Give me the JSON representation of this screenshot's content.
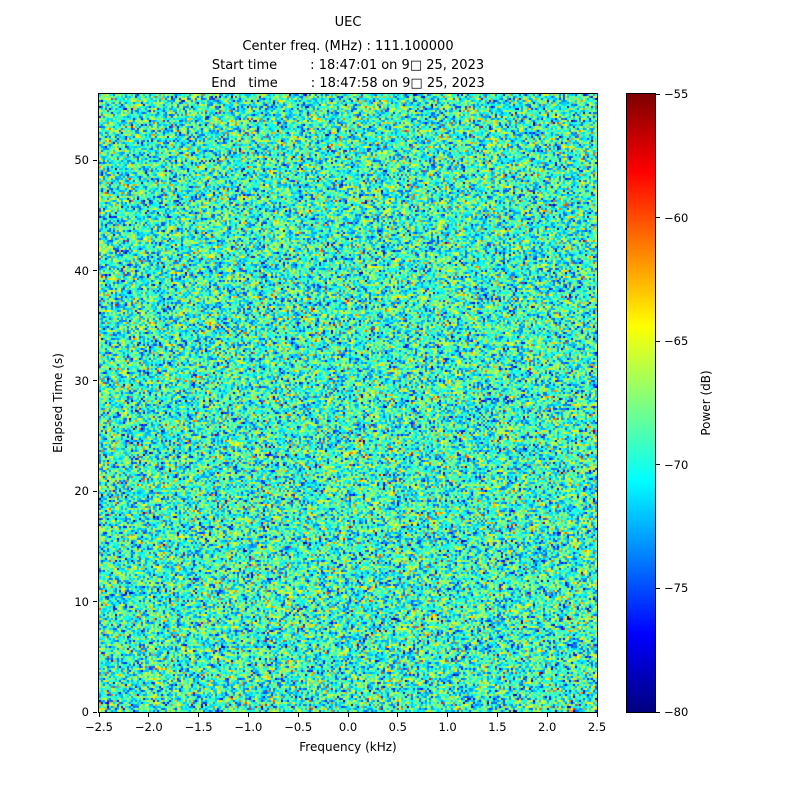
{
  "title": {
    "line1": "UEC",
    "line2": "Center freq. (MHz) : 111.100000",
    "line3": "Start time        : 18:47:01 on 9□ 25, 2023",
    "line4": "End   time        : 18:47:58 on 9□ 25, 2023"
  },
  "chart_data": {
    "type": "heatmap",
    "title": "UEC",
    "subtitle_lines": [
      "Center freq. (MHz) : 111.100000",
      "Start time        : 18:47:01 on 9□ 25, 2023",
      "End   time        : 18:47:58 on 9□ 25, 2023"
    ],
    "xlabel": "Frequency (kHz)",
    "ylabel": "Elapsed Time (s)",
    "xlim": [
      -2.5,
      2.5
    ],
    "ylim": [
      0,
      56
    ],
    "x_ticks": [
      -2.5,
      -2.0,
      -1.5,
      -1.0,
      -0.5,
      0.0,
      0.5,
      1.0,
      1.5,
      2.0,
      2.5
    ],
    "x_tick_labels": [
      "−2.5",
      "−2.0",
      "−1.5",
      "−1.0",
      "−0.5",
      "0.0",
      "0.5",
      "1.0",
      "1.5",
      "2.0",
      "2.5"
    ],
    "y_ticks": [
      0,
      10,
      20,
      30,
      40,
      50
    ],
    "y_tick_labels": [
      "0",
      "10",
      "20",
      "30",
      "40",
      "50"
    ],
    "colorbar": {
      "label": "Power (dB)",
      "tick_values": [
        -55,
        -60,
        -65,
        -70,
        -75,
        -80
      ],
      "tick_labels": [
        "−55",
        "−60",
        "−65",
        "−70",
        "−75",
        "−80"
      ],
      "clim": [
        -80,
        -55
      ]
    },
    "colormap": "jet",
    "grid": false,
    "legend": "none",
    "data_description": "spectrogram of broadband random noise; no coherent signal visible; power values are noise distributed around a mean of about -69.5 dB (std ~3.5 dB) across -2.5 to 2.5 kHz and 0 to ~56 s",
    "noise": {
      "mean": -69.5,
      "std": 3.5,
      "seed": 1234
    }
  }
}
